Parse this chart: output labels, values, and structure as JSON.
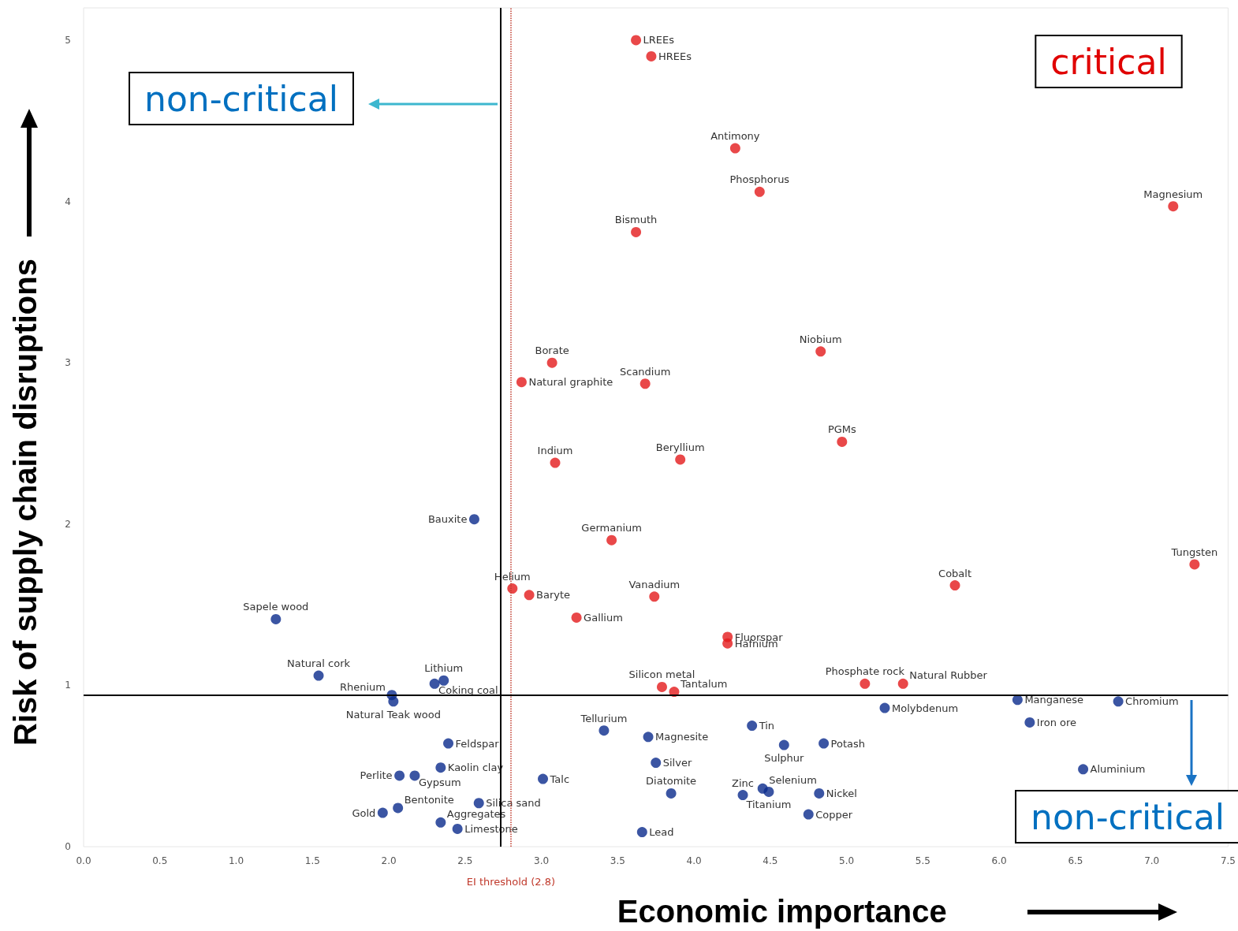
{
  "chart_data": {
    "type": "scatter",
    "xlabel": "Economic importance",
    "ylabel": "Risk of supply chain disruptions",
    "xlim": [
      0,
      7.5
    ],
    "ylim": [
      0,
      5.2
    ],
    "xticks": [
      {
        "value": 0,
        "label": "0.0"
      },
      0.5,
      {
        "value": 1,
        "label": "1.0"
      },
      1.5,
      {
        "value": 2,
        "label": "2.0"
      },
      2.5,
      {
        "value": 3,
        "label": "3.0"
      },
      3.5,
      {
        "value": 4,
        "label": "4.0"
      },
      4.5,
      {
        "value": 5,
        "label": "5.0"
      },
      5.5,
      {
        "value": 6,
        "label": "6.0"
      },
      6.5,
      {
        "value": 7,
        "label": "7.0"
      },
      7.5
    ],
    "yticks": [
      0,
      1,
      2,
      3,
      4,
      5
    ],
    "grid": false,
    "marker": "circle",
    "series": [
      {
        "color": "#e31a1c",
        "x": [
          3.62,
          3.72,
          4.27,
          4.43,
          7.14,
          3.62,
          4.83,
          3.07,
          2.87,
          3.68,
          4.97,
          3.09,
          3.91,
          3.46,
          7.28,
          5.71,
          2.81,
          2.92,
          3.74,
          3.23,
          4.22,
          4.22,
          3.79,
          3.87,
          5.12,
          5.37
        ],
        "values": [
          5.0,
          4.9,
          4.33,
          4.06,
          3.97,
          3.81,
          3.07,
          3.0,
          2.88,
          2.87,
          2.51,
          2.38,
          2.4,
          1.9,
          1.75,
          1.62,
          1.6,
          1.56,
          1.55,
          1.42,
          1.3,
          1.26,
          0.99,
          0.96,
          1.01,
          1.01
        ]
      },
      {
        "color": "#0a2a8c",
        "x": [
          2.56,
          1.26,
          1.54,
          2.02,
          2.03,
          2.36,
          2.3,
          6.12,
          6.78,
          5.25,
          6.2,
          3.41,
          3.7,
          4.38,
          2.39,
          4.59,
          4.85,
          3.75,
          6.55,
          2.34,
          2.07,
          2.17,
          3.01,
          3.85,
          4.32,
          4.45,
          4.49,
          4.82,
          4.75,
          2.59,
          2.06,
          1.96,
          2.34,
          2.45,
          3.66
        ],
        "values": [
          2.03,
          1.41,
          1.06,
          0.94,
          0.9,
          1.03,
          1.01,
          0.91,
          0.9,
          0.86,
          0.77,
          0.72,
          0.68,
          0.75,
          0.64,
          0.63,
          0.64,
          0.52,
          0.48,
          0.49,
          0.44,
          0.44,
          0.42,
          0.33,
          0.32,
          0.36,
          0.34,
          0.33,
          0.2,
          0.27,
          0.24,
          0.21,
          0.15,
          0.11,
          0.09
        ]
      }
    ],
    "ref_lines": [
      {
        "axis": "x",
        "value": 2.73,
        "color": "#000000",
        "line_style": "solid"
      },
      {
        "axis": "x",
        "value": 2.8,
        "label": "EI threshold (2.8)",
        "color": "#c0392b",
        "line_style": "dotted"
      },
      {
        "axis": "y",
        "value": 0.94,
        "color": "#000000",
        "line_style": "solid"
      }
    ],
    "annotations": [
      {
        "text": "LREEs",
        "x": 3.62,
        "y": 5.0
      },
      {
        "text": "HREEs",
        "x": 3.72,
        "y": 4.9
      },
      {
        "text": "Antimony",
        "x": 4.27,
        "y": 4.33
      },
      {
        "text": "Phosphorus",
        "x": 4.43,
        "y": 4.06
      },
      {
        "text": "Magnesium",
        "x": 7.14,
        "y": 3.97
      },
      {
        "text": "Bismuth",
        "x": 3.62,
        "y": 3.81
      },
      {
        "text": "Niobium",
        "x": 4.83,
        "y": 3.07
      },
      {
        "text": "Borate",
        "x": 3.07,
        "y": 3.0
      },
      {
        "text": "Natural graphite",
        "x": 2.87,
        "y": 2.88
      },
      {
        "text": "Scandium",
        "x": 3.68,
        "y": 2.87
      },
      {
        "text": "PGMs",
        "x": 4.97,
        "y": 2.51
      },
      {
        "text": "Indium",
        "x": 3.09,
        "y": 2.38
      },
      {
        "text": "Beryllium",
        "x": 3.91,
        "y": 2.4
      },
      {
        "text": "Germanium",
        "x": 3.46,
        "y": 1.9
      },
      {
        "text": "Tungsten",
        "x": 7.28,
        "y": 1.75
      },
      {
        "text": "Cobalt",
        "x": 5.71,
        "y": 1.62
      },
      {
        "text": "Helium",
        "x": 2.81,
        "y": 1.6
      },
      {
        "text": "Baryte",
        "x": 2.92,
        "y": 1.56
      },
      {
        "text": "Vanadium",
        "x": 3.74,
        "y": 1.55
      },
      {
        "text": "Gallium",
        "x": 3.23,
        "y": 1.42
      },
      {
        "text": "Fluorspar",
        "x": 4.22,
        "y": 1.3
      },
      {
        "text": "Hafnium",
        "x": 4.22,
        "y": 1.26
      },
      {
        "text": "Silicon metal",
        "x": 3.79,
        "y": 0.99
      },
      {
        "text": "Tantalum",
        "x": 3.87,
        "y": 0.96
      },
      {
        "text": "Phosphate rock",
        "x": 5.12,
        "y": 1.01
      },
      {
        "text": "Natural Rubber",
        "x": 5.37,
        "y": 1.01
      },
      {
        "text": "Bauxite",
        "x": 2.56,
        "y": 2.03
      },
      {
        "text": "Sapele wood",
        "x": 1.26,
        "y": 1.41
      },
      {
        "text": "Natural cork",
        "x": 1.54,
        "y": 1.06
      },
      {
        "text": "Rhenium",
        "x": 2.02,
        "y": 0.94
      },
      {
        "text": "Natural Teak wood",
        "x": 2.03,
        "y": 0.9
      },
      {
        "text": "Lithium",
        "x": 2.36,
        "y": 1.03
      },
      {
        "text": "Coking coal",
        "x": 2.3,
        "y": 1.01
      },
      {
        "text": "Manganese",
        "x": 6.12,
        "y": 0.91
      },
      {
        "text": "Chromium",
        "x": 6.78,
        "y": 0.9
      },
      {
        "text": "Molybdenum",
        "x": 5.25,
        "y": 0.86
      },
      {
        "text": "Iron ore",
        "x": 6.2,
        "y": 0.77
      },
      {
        "text": "Tellurium",
        "x": 3.41,
        "y": 0.72
      },
      {
        "text": "Magnesite",
        "x": 3.7,
        "y": 0.68
      },
      {
        "text": "Tin",
        "x": 4.38,
        "y": 0.75
      },
      {
        "text": "Feldspar",
        "x": 2.39,
        "y": 0.64
      },
      {
        "text": "Sulphur",
        "x": 4.59,
        "y": 0.63
      },
      {
        "text": "Potash",
        "x": 4.85,
        "y": 0.64
      },
      {
        "text": "Silver",
        "x": 3.75,
        "y": 0.52
      },
      {
        "text": "Aluminium",
        "x": 6.55,
        "y": 0.48
      },
      {
        "text": "Kaolin clay",
        "x": 2.34,
        "y": 0.49
      },
      {
        "text": "Perlite",
        "x": 2.07,
        "y": 0.44
      },
      {
        "text": "Gypsum",
        "x": 2.17,
        "y": 0.44
      },
      {
        "text": "Talc",
        "x": 3.01,
        "y": 0.42
      },
      {
        "text": "Diatomite",
        "x": 3.85,
        "y": 0.33
      },
      {
        "text": "Zinc",
        "x": 4.32,
        "y": 0.32
      },
      {
        "text": "Selenium",
        "x": 4.45,
        "y": 0.36
      },
      {
        "text": "Titanium",
        "x": 4.49,
        "y": 0.34
      },
      {
        "text": "Nickel",
        "x": 4.82,
        "y": 0.33
      },
      {
        "text": "Copper",
        "x": 4.75,
        "y": 0.2
      },
      {
        "text": "Silica sand",
        "x": 2.59,
        "y": 0.27
      },
      {
        "text": "Bentonite",
        "x": 2.06,
        "y": 0.24
      },
      {
        "text": "Gold",
        "x": 1.96,
        "y": 0.21
      },
      {
        "text": "Aggregates",
        "x": 2.34,
        "y": 0.15
      },
      {
        "text": "Limestone",
        "x": 2.45,
        "y": 0.11
      },
      {
        "text": "Lead",
        "x": 3.66,
        "y": 0.09
      },
      "critical",
      "non-critical",
      "non-critical"
    ]
  }
}
